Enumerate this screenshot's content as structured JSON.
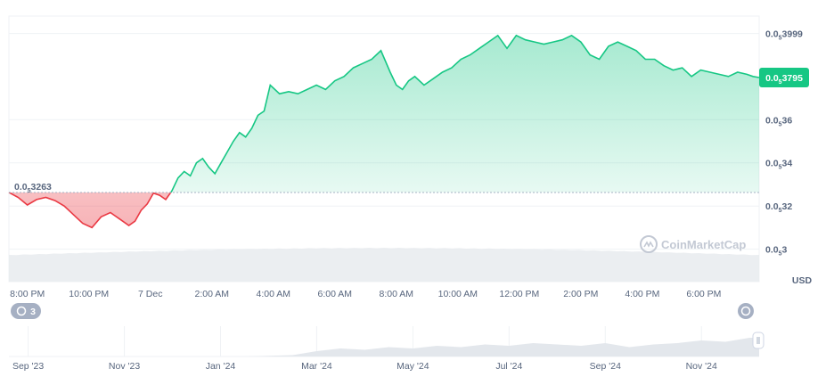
{
  "currency": "USD",
  "watermark": "CoinMarketCap",
  "history_badge": "3",
  "colors": {
    "up_line": "#16c784",
    "down_line": "#ea3943",
    "up_fill": "#16c784",
    "down_fill": "#ea3943",
    "grid": "#eff2f5",
    "volume": "#e9ecf0",
    "text": "#58667e"
  },
  "chart_data": {
    "type": "area",
    "price_prefix": "0.0",
    "price_subscript": "5",
    "open_reference": {
      "label": "0.0",
      "sub": "5",
      "tail": "3263",
      "value": 3263
    },
    "current_price": {
      "label": "0.0",
      "sub": "5",
      "tail": "3795",
      "value": 3795
    },
    "y_ticks": [
      {
        "value": 3999,
        "tail": "3999"
      },
      {
        "value": 3600,
        "tail": "36"
      },
      {
        "value": 3400,
        "tail": "34"
      },
      {
        "value": 3200,
        "tail": "32"
      },
      {
        "value": 3000,
        "tail": "3"
      }
    ],
    "ylim": [
      2850,
      4080
    ],
    "x_ticks": [
      "8:00 PM",
      "10:00 PM",
      "7 Dec",
      "2:00 AM",
      "4:00 AM",
      "6:00 AM",
      "8:00 AM",
      "10:00 AM",
      "12:00 PM",
      "2:00 PM",
      "4:00 PM",
      "6:00 PM"
    ],
    "x_tick_hours": [
      0,
      2,
      4,
      6,
      8,
      10,
      12,
      14,
      16,
      18,
      20,
      22
    ],
    "x_range_hours": [
      -0.6,
      23.8
    ],
    "series": [
      {
        "x": [
          -0.6,
          -0.3,
          0.0,
          0.3,
          0.6,
          0.9,
          1.2,
          1.5,
          1.8,
          2.1,
          2.4,
          2.7,
          3.0,
          3.3,
          3.5,
          3.7,
          3.9,
          4.1,
          4.3,
          4.5,
          4.7,
          4.9,
          5.1,
          5.3,
          5.5,
          5.7,
          5.9,
          6.1,
          6.3,
          6.5,
          6.7,
          6.9,
          7.1,
          7.3,
          7.5,
          7.7,
          7.9,
          8.2,
          8.5,
          8.8,
          9.1,
          9.4,
          9.7,
          10.0,
          10.3,
          10.6,
          10.9,
          11.2,
          11.5,
          11.8,
          12.0,
          12.2,
          12.4,
          12.6,
          12.9,
          13.2,
          13.5,
          13.8,
          14.1,
          14.4,
          14.7,
          15.0,
          15.3,
          15.6,
          15.9,
          16.2,
          16.5,
          16.8,
          17.1,
          17.4,
          17.7,
          18.0,
          18.3,
          18.6,
          18.9,
          19.2,
          19.5,
          19.8,
          20.1,
          20.4,
          20.7,
          21.0,
          21.3,
          21.6,
          21.9,
          22.2,
          22.5,
          22.8,
          23.1,
          23.4,
          23.6,
          23.8
        ],
        "y": [
          3263,
          3240,
          3205,
          3230,
          3240,
          3225,
          3200,
          3160,
          3120,
          3100,
          3150,
          3170,
          3140,
          3110,
          3130,
          3180,
          3210,
          3260,
          3250,
          3230,
          3270,
          3330,
          3360,
          3340,
          3400,
          3420,
          3380,
          3350,
          3400,
          3450,
          3500,
          3540,
          3520,
          3560,
          3620,
          3640,
          3760,
          3720,
          3730,
          3720,
          3740,
          3760,
          3740,
          3780,
          3800,
          3840,
          3860,
          3880,
          3920,
          3820,
          3760,
          3740,
          3780,
          3800,
          3760,
          3790,
          3820,
          3840,
          3880,
          3900,
          3930,
          3960,
          3990,
          3930,
          3990,
          3970,
          3960,
          3950,
          3960,
          3970,
          3990,
          3960,
          3900,
          3880,
          3940,
          3960,
          3940,
          3920,
          3880,
          3880,
          3850,
          3830,
          3840,
          3800,
          3830,
          3820,
          3810,
          3800,
          3820,
          3810,
          3800,
          3795
        ]
      }
    ],
    "navigator": {
      "ticks": [
        "Sep '23",
        "Nov '23",
        "Jan '24",
        "Mar '24",
        "May '24",
        "Jul '24",
        "Sep '24",
        "Nov '24"
      ],
      "x_months": [
        0,
        2,
        4,
        6,
        8,
        10,
        12,
        14
      ],
      "x_range_months": [
        -0.4,
        15.2
      ],
      "x": [
        -0.4,
        0.5,
        1.5,
        2.5,
        3.5,
        4.5,
        5.5,
        6.0,
        6.5,
        7.0,
        7.5,
        8.0,
        8.5,
        9.0,
        9.5,
        10.0,
        10.5,
        11.0,
        11.5,
        12.0,
        12.5,
        13.0,
        13.5,
        14.0,
        14.5,
        15.0,
        15.2
      ],
      "y": [
        0,
        0,
        0,
        0,
        0,
        0,
        0.05,
        0.2,
        0.3,
        0.25,
        0.35,
        0.3,
        0.4,
        0.35,
        0.45,
        0.4,
        0.5,
        0.45,
        0.4,
        0.5,
        0.35,
        0.45,
        0.5,
        0.6,
        0.55,
        0.7,
        0.7
      ]
    }
  }
}
